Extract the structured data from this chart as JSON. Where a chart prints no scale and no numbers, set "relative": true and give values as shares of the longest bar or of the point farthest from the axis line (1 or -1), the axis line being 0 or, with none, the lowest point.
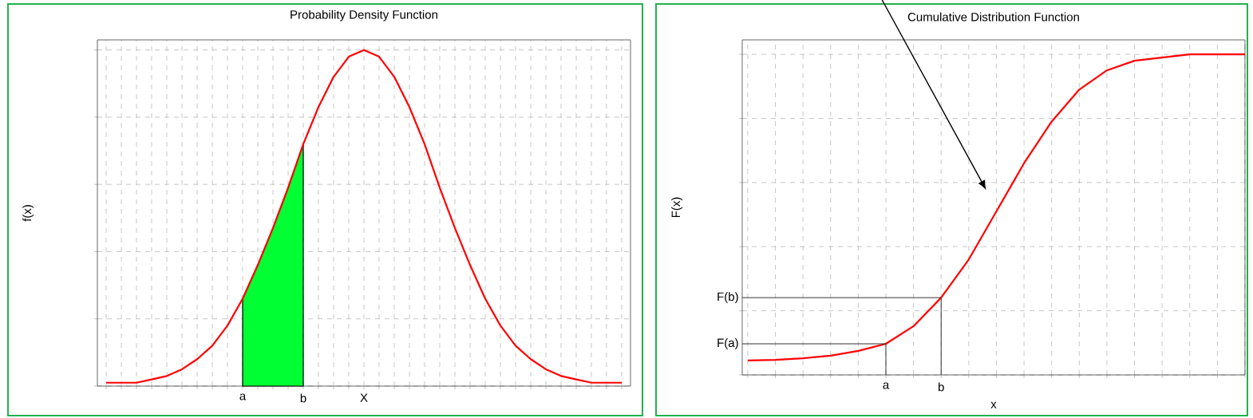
{
  "chart_data": [
    {
      "type": "line",
      "title": "Probability Density Function",
      "ylabel": "f(x)",
      "relative": true,
      "grid": true,
      "categories": [
        null,
        null,
        null,
        null,
        null,
        null,
        null,
        null,
        null,
        "a",
        null,
        null,
        null,
        "b",
        null,
        null,
        null,
        "X",
        null,
        null,
        null,
        null,
        null,
        null,
        null,
        null,
        null,
        null,
        null,
        null,
        null,
        null,
        null,
        null,
        null
      ],
      "series": [
        {
          "type": "area",
          "color": "#00ff33",
          "values": [
            null,
            null,
            null,
            null,
            null,
            null,
            null,
            null,
            null,
            0.26,
            0.36,
            0.47,
            0.59,
            0.72,
            null,
            null,
            null,
            null,
            null,
            null,
            null,
            null,
            null,
            null,
            null,
            null,
            null,
            null,
            null,
            null,
            null,
            null,
            null,
            null,
            null
          ]
        },
        {
          "color": "#ff0000",
          "values": [
            0.01,
            0.01,
            0.01,
            0.02,
            0.03,
            0.05,
            0.08,
            0.12,
            0.18,
            0.26,
            0.36,
            0.47,
            0.59,
            0.72,
            0.83,
            0.92,
            0.98,
            1.0,
            0.98,
            0.92,
            0.83,
            0.72,
            0.59,
            0.47,
            0.36,
            0.26,
            0.18,
            0.12,
            0.08,
            0.05,
            0.03,
            0.02,
            0.01,
            0.01,
            0.01
          ]
        }
      ]
    },
    {
      "type": "line",
      "title": "Cumulative Distribution Function",
      "xlabel": "x",
      "ylabel": "F(x)",
      "relative": true,
      "grid": true,
      "categories": [
        null,
        null,
        null,
        null,
        null,
        "a",
        null,
        "b",
        null,
        null,
        null,
        null,
        null,
        null,
        null,
        null,
        null,
        null,
        null
      ],
      "series": [
        {
          "color": "#ff0000",
          "values": [
            0.045,
            0.047,
            0.052,
            0.06,
            0.075,
            0.097,
            0.152,
            0.241,
            0.36,
            0.51,
            0.66,
            0.79,
            0.89,
            0.95,
            0.98,
            0.99,
            1.0,
            1.0,
            1.0
          ]
        }
      ],
      "ref_lines": [
        {
          "axis": "y",
          "value": 0.097,
          "label": "F(a)"
        },
        {
          "axis": "y",
          "value": 0.241,
          "label": "F(b)"
        }
      ]
    }
  ]
}
